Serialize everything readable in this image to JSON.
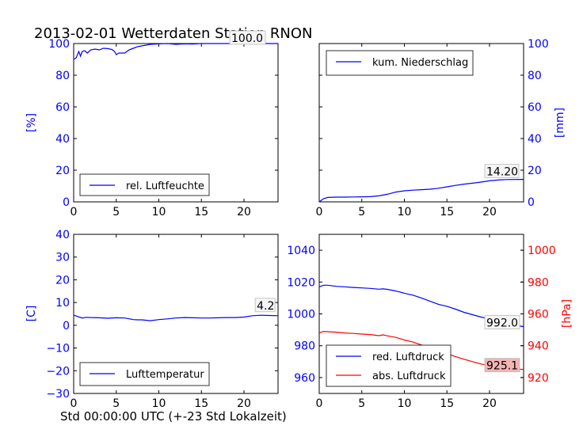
{
  "figure": {
    "title": "2013-02-01 Wetterdaten Station RNON",
    "xlabel": "Std 00:00:00 UTC (+-23 Std Lokalzeit)"
  },
  "colors": {
    "blue": "#0000ff",
    "red": "#ff0000",
    "axis": "#000000",
    "ann_bg": "#f5f5f5",
    "ann_red_bg": "#f4b4b4"
  },
  "chart_data": [
    {
      "id": "humidity",
      "type": "line",
      "xlim": [
        0,
        24
      ],
      "ylim": [
        0,
        100
      ],
      "xticks": [
        0,
        5,
        10,
        15,
        20
      ],
      "yticks": [
        0,
        20,
        40,
        60,
        80,
        100
      ],
      "ylabel": "[%]",
      "ylabel_side": "left",
      "legend": "lower-left",
      "series": [
        {
          "name": "rel. Luftfeuchte",
          "color": "#0000ff",
          "x": [
            0,
            0.3,
            0.6,
            0.8,
            1.0,
            1.3,
            1.6,
            2.0,
            2.5,
            3.0,
            3.5,
            4.0,
            4.5,
            4.8,
            5.0,
            5.3,
            5.6,
            6.0,
            6.5,
            7.0,
            7.5,
            8.0,
            8.5,
            9.0,
            10,
            11,
            12,
            13,
            14,
            15,
            16,
            18,
            20,
            22,
            24
          ],
          "y": [
            90,
            91,
            95,
            92,
            95,
            95.5,
            94,
            96,
            96.5,
            96,
            97,
            96.8,
            96.2,
            95,
            93,
            94,
            94,
            94,
            96,
            97,
            98,
            98.5,
            99,
            99.5,
            99.8,
            100,
            99.5,
            99.8,
            99.7,
            100,
            100,
            100,
            100,
            100,
            100
          ]
        }
      ],
      "annotations": [
        {
          "x": 20,
          "y": 100,
          "text": "100.0"
        }
      ]
    },
    {
      "id": "precip",
      "type": "line",
      "xlim": [
        0,
        24
      ],
      "ylim": [
        0,
        100
      ],
      "xticks": [
        0,
        5,
        10,
        15,
        20
      ],
      "yticks": [
        0,
        20,
        40,
        60,
        80,
        100
      ],
      "ylabel": "[mm]",
      "ylabel_side": "right",
      "legend": "upper-left",
      "series": [
        {
          "name": "kum. Niederschlag",
          "color": "#0000ff",
          "x": [
            0,
            0.5,
            1,
            2,
            3,
            4,
            5,
            6,
            7,
            8,
            9,
            10,
            11,
            12,
            13,
            14,
            15,
            16,
            17,
            18,
            19,
            20,
            21,
            22,
            24
          ],
          "y": [
            0,
            2,
            2.8,
            3,
            3,
            3.1,
            3.2,
            3.3,
            3.8,
            4.8,
            6.2,
            7,
            7.4,
            7.7,
            8,
            8.6,
            9.5,
            10.4,
            11.2,
            11.8,
            12.5,
            13.3,
            13.8,
            14.1,
            14.2
          ]
        }
      ],
      "annotations": [
        {
          "x": 20,
          "y": 14.2,
          "text": "14.20"
        }
      ]
    },
    {
      "id": "temperature",
      "type": "line",
      "xlim": [
        0,
        24
      ],
      "ylim": [
        -30,
        40
      ],
      "xticks": [
        0,
        5,
        10,
        15,
        20
      ],
      "yticks": [
        -30,
        -20,
        -10,
        0,
        10,
        20,
        30,
        40
      ],
      "ylabel": "[C]",
      "ylabel_side": "left",
      "legend": "lower-left",
      "series": [
        {
          "name": "Lufttemperatur",
          "color": "#0000ff",
          "x": [
            0,
            0.5,
            1,
            1.5,
            2,
            3,
            4,
            5,
            6,
            7,
            7.5,
            8,
            9,
            10,
            11,
            12,
            13,
            14,
            15,
            16,
            17,
            18,
            19,
            20,
            21,
            22,
            23,
            24
          ],
          "y": [
            4.5,
            3.8,
            3.2,
            3.5,
            3.4,
            3.3,
            3.1,
            3.3,
            3.2,
            2.5,
            2.4,
            2.4,
            2.0,
            2.5,
            2.8,
            3.2,
            3.4,
            3.3,
            3.2,
            3.2,
            3.3,
            3.4,
            3.4,
            3.6,
            4.2,
            4.4,
            4.3,
            4.2
          ]
        }
      ],
      "annotations": [
        {
          "x": 21.5,
          "y": 4.2,
          "text": "4.2"
        }
      ]
    },
    {
      "id": "pressure",
      "type": "line",
      "xlim": [
        0,
        24
      ],
      "ylim": [
        950,
        1050
      ],
      "yticks": [
        960,
        980,
        1000,
        1020,
        1040
      ],
      "ylim_right": [
        910,
        1010
      ],
      "yticks_right": [
        920,
        940,
        960,
        980,
        1000
      ],
      "xticks": [
        0,
        5,
        10,
        15,
        20
      ],
      "ylabel_right": "[hPa]",
      "legend": "lower-left",
      "series": [
        {
          "name": "red. Luftdruck",
          "color": "#0000ff",
          "axis": "left",
          "x": [
            0,
            0.5,
            1,
            2,
            3,
            4,
            5,
            6,
            7,
            7.5,
            8,
            9,
            10,
            11,
            12,
            13,
            14,
            15,
            16,
            17,
            18,
            19,
            20,
            21,
            22,
            23,
            24
          ],
          "y": [
            1017,
            1018,
            1018,
            1017.3,
            1017,
            1016.6,
            1016.3,
            1016,
            1015.5,
            1015.7,
            1015.4,
            1014.4,
            1013,
            1011.8,
            1010,
            1008,
            1006,
            1004.8,
            1003,
            1001,
            999.5,
            998,
            996.8,
            995.5,
            994,
            993,
            992
          ]
        },
        {
          "name": "abs. Luftdruck",
          "color": "#ff0000",
          "axis": "right",
          "x": [
            0,
            0.5,
            1,
            2,
            3,
            4,
            5,
            6,
            7,
            7.5,
            8,
            9,
            10,
            11,
            12,
            13,
            14,
            15,
            16,
            17,
            18,
            19,
            20,
            21,
            22,
            23,
            24
          ],
          "y": [
            948,
            949,
            948.8,
            948.5,
            948,
            947.7,
            947.3,
            947,
            946.3,
            946.8,
            946.2,
            945.2,
            943.6,
            942.3,
            940.5,
            938.5,
            936.5,
            935,
            933.2,
            931.5,
            930,
            928.5,
            927.5,
            926.5,
            925.8,
            925.3,
            925.1
          ]
        }
      ],
      "annotations": [
        {
          "x": 20,
          "y": 992,
          "axis": "left",
          "text": "992.0",
          "style": "plain"
        },
        {
          "x": 20,
          "y": 925.1,
          "axis": "right",
          "text": "925.1",
          "style": "red"
        }
      ]
    }
  ]
}
